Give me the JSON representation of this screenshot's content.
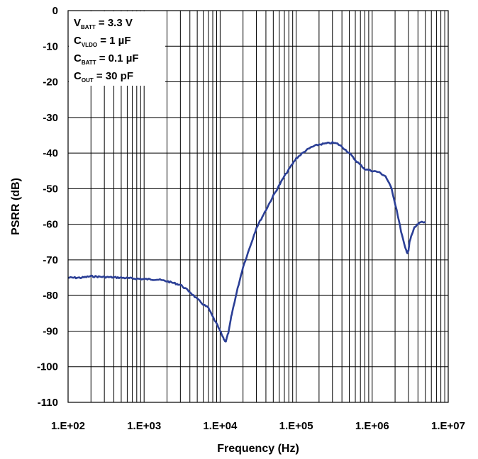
{
  "chart_data": {
    "type": "line",
    "title": "",
    "xlabel": "Frequency (Hz)",
    "ylabel": "PSRR (dB)",
    "x_scale": "log",
    "xlim": [
      100,
      10000000
    ],
    "ylim": [
      -110,
      0
    ],
    "grid": true,
    "x_tick_labels": [
      "1.E+02",
      "1.E+03",
      "1.E+04",
      "1.E+05",
      "1.E+06",
      "1.E+07"
    ],
    "y_tick_labels": [
      "0",
      "-10",
      "-20",
      "-30",
      "-40",
      "-50",
      "-60",
      "-70",
      "-80",
      "-90",
      "-100",
      "-110"
    ],
    "y_ticks": [
      0,
      -10,
      -20,
      -30,
      -40,
      -50,
      -60,
      -70,
      -80,
      -90,
      -100,
      -110
    ],
    "annotation": [
      {
        "main": "V",
        "sub": "BATT",
        "value": " = 3.3 V"
      },
      {
        "main": "C",
        "sub": "VLDO",
        "value": " = 1 µF"
      },
      {
        "main": "C",
        "sub": "BATT",
        "value": " = 0.1 µF"
      },
      {
        "main": "C",
        "sub": "OUT",
        "value": " = 30 pF"
      }
    ],
    "series": [
      {
        "color": "#2b3f96",
        "x": [
          100,
          150,
          200,
          300,
          500,
          700,
          1000,
          1500,
          2000,
          3000,
          4000,
          5000,
          6000,
          7000,
          8000,
          9000,
          10000,
          11000,
          11800,
          12200,
          13000,
          14000,
          15000,
          17000,
          20000,
          25000,
          30000,
          40000,
          50000,
          70000,
          100000,
          130000,
          160000,
          200000,
          250000,
          300000,
          350000,
          400000,
          500000,
          600000,
          800000,
          1000000,
          1200000,
          1500000,
          1800000,
          2100000,
          2400000,
          2700000,
          2900000,
          3000000,
          3100000,
          3300000,
          3600000,
          4000000,
          4500000,
          5000000
        ],
        "y": [
          -75,
          -75,
          -74.6,
          -74.8,
          -75,
          -75.2,
          -75.4,
          -75.5,
          -76,
          -77,
          -79,
          -81,
          -82.5,
          -83.5,
          -86,
          -88,
          -90,
          -92,
          -93,
          -92,
          -90,
          -86,
          -83,
          -78,
          -72,
          -66,
          -61,
          -56,
          -52,
          -46.5,
          -41.5,
          -39.5,
          -38.3,
          -37.6,
          -37.3,
          -37.1,
          -37.4,
          -38.2,
          -40,
          -42,
          -44.5,
          -45,
          -45.3,
          -46.5,
          -50,
          -56,
          -62,
          -66.5,
          -68,
          -67.5,
          -65,
          -63,
          -61,
          -60,
          -59.3,
          -59.3
        ]
      }
    ]
  }
}
